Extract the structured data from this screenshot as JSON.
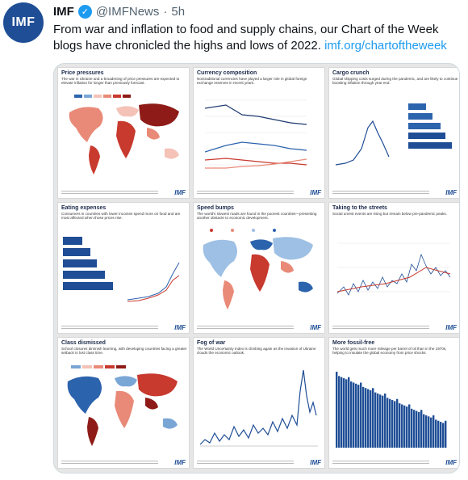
{
  "account": {
    "avatar_text": "IMF",
    "name": "IMF",
    "handle": "@IMFNews",
    "separator": "·",
    "time": "5h"
  },
  "tweet": {
    "text": "From war and inflation to food and supply chains, our Chart of the Week blogs have chronicled the highs and lows of 2022.",
    "link": "imf.org/chartoftheweek"
  },
  "charts": [
    {
      "title": "Price pressures",
      "subtitle": "The war in Ukraine and a broadening of price pressures are expected to elevate inflation for longer than previously forecast."
    },
    {
      "title": "Currency composition",
      "subtitle": "Nontraditional currencies have played a larger role in global foreign exchange reserves in recent years."
    },
    {
      "title": "Cargo crunch",
      "subtitle": "Global shipping costs surged during the pandemic, and are likely to continue boosting inflation through year end."
    },
    {
      "title": "Eating expenses",
      "subtitle": "Consumers in countries with lower incomes spend more on food and are most affected when those prices rise."
    },
    {
      "title": "Speed bumps",
      "subtitle": "The world's slowest roads are found in the poorest countries—presenting another obstacle to economic development."
    },
    {
      "title": "Taking to the streets",
      "subtitle": "Social unrest events are rising but remain below pre-pandemic peaks."
    },
    {
      "title": "Class dismissed",
      "subtitle": "School closures diminish learning, with developing countries facing a greater setback in lost class time."
    },
    {
      "title": "Fog of war",
      "subtitle": "The World Uncertainty Index is climbing again as the invasion of Ukraine clouds the economic outlook."
    },
    {
      "title": "More fossil-free",
      "subtitle": "The world gets much more mileage per barrel of oil than in the 1970s, helping to insulate the global economy from price shocks."
    }
  ],
  "logo": "IMF",
  "colors": {
    "brand": "#1f4e96",
    "link": "#1d9bf0",
    "muted": "#536471"
  }
}
